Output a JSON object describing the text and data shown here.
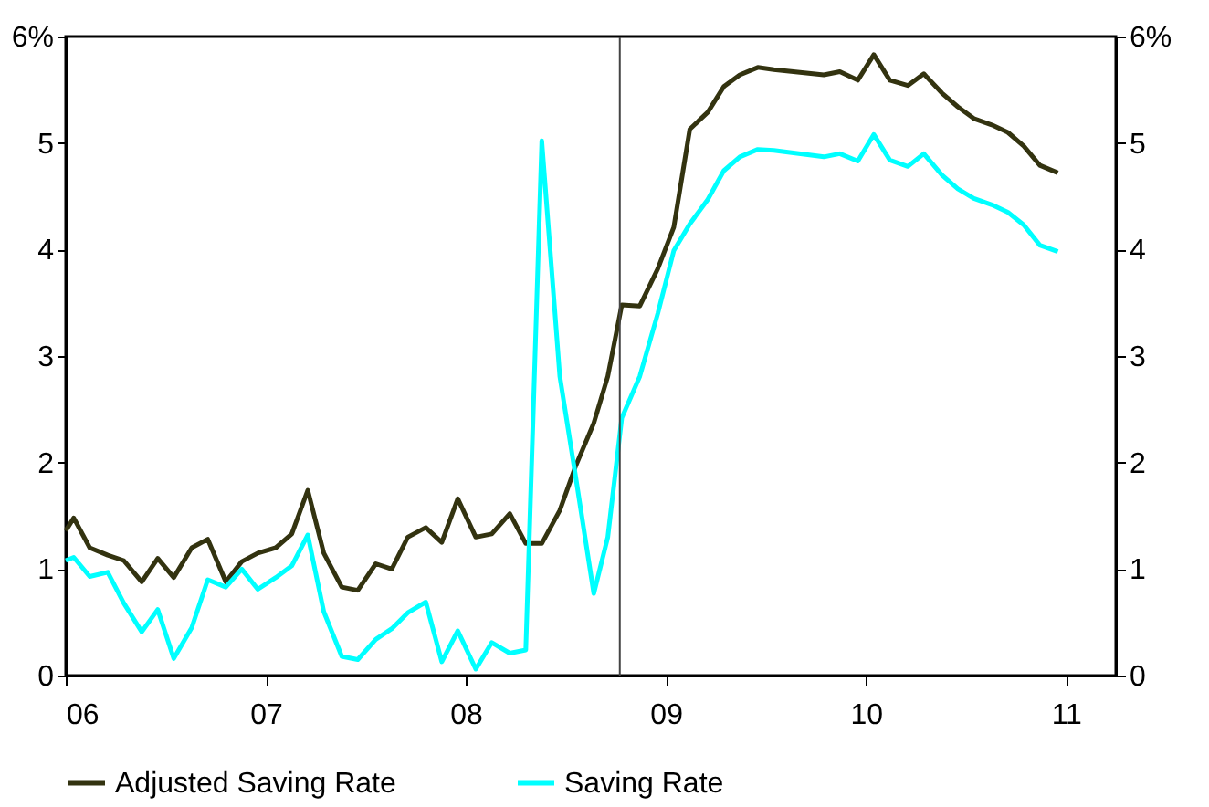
{
  "chart_data": {
    "type": "line",
    "x": [
      2006.0,
      2006.04,
      2006.12,
      2006.21,
      2006.29,
      2006.38,
      2006.46,
      2006.54,
      2006.63,
      2006.71,
      2006.8,
      2006.88,
      2006.96,
      2007.05,
      2007.13,
      2007.21,
      2007.29,
      2007.38,
      2007.46,
      2007.55,
      2007.63,
      2007.71,
      2007.8,
      2007.88,
      2007.96,
      2008.05,
      2008.13,
      2008.22,
      2008.3,
      2008.38,
      2008.47,
      2008.55,
      2008.64,
      2008.71,
      2008.78,
      2008.87,
      2008.96,
      2009.04,
      2009.12,
      2009.21,
      2009.29,
      2009.37,
      2009.46,
      2009.54,
      2009.79,
      2009.87,
      2009.96,
      2010.04,
      2010.12,
      2010.21,
      2010.29,
      2010.38,
      2010.46,
      2010.54,
      2010.63,
      2010.71,
      2010.79,
      2010.87,
      2010.96
    ],
    "series": [
      {
        "name": "Adjusted Saving Rate",
        "color": "#333310",
        "values": [
          1.36,
          1.48,
          1.2,
          1.13,
          1.08,
          0.88,
          1.1,
          0.92,
          1.2,
          1.28,
          0.88,
          1.07,
          1.15,
          1.2,
          1.33,
          1.74,
          1.15,
          0.83,
          0.8,
          1.05,
          1.0,
          1.3,
          1.39,
          1.25,
          1.66,
          1.3,
          1.33,
          1.52,
          1.24,
          1.24,
          1.55,
          1.97,
          2.37,
          2.81,
          3.48,
          3.47,
          3.82,
          4.21,
          5.13,
          5.29,
          5.53,
          5.64,
          5.71,
          5.69,
          5.64,
          5.67,
          5.59,
          5.83,
          5.59,
          5.54,
          5.65,
          5.47,
          5.34,
          5.23,
          5.17,
          5.1,
          4.97,
          4.79,
          4.72
        ]
      },
      {
        "name": "Saving Rate",
        "color": "#00ffff",
        "values": [
          1.08,
          1.11,
          0.93,
          0.97,
          0.68,
          0.41,
          0.62,
          0.16,
          0.45,
          0.9,
          0.83,
          1.0,
          0.81,
          0.92,
          1.03,
          1.32,
          0.6,
          0.18,
          0.15,
          0.34,
          0.44,
          0.59,
          0.69,
          0.13,
          0.42,
          0.06,
          0.31,
          0.21,
          0.24,
          5.02,
          2.81,
          1.86,
          0.77,
          1.3,
          2.42,
          2.81,
          3.4,
          3.99,
          4.24,
          4.47,
          4.74,
          4.87,
          4.94,
          4.93,
          4.87,
          4.9,
          4.83,
          5.08,
          4.84,
          4.78,
          4.9,
          4.7,
          4.57,
          4.48,
          4.42,
          4.35,
          4.23,
          4.04,
          3.98
        ]
      }
    ],
    "xlim": [
      2006,
      2011.25
    ],
    "xticks": [
      {
        "value": 2006,
        "label": "06"
      },
      {
        "value": 2007,
        "label": "07"
      },
      {
        "value": 2008,
        "label": "08"
      },
      {
        "value": 2009,
        "label": "09"
      },
      {
        "value": 2010,
        "label": "10"
      },
      {
        "value": 2011,
        "label": "11"
      }
    ],
    "ylim": [
      0,
      6
    ],
    "yticks": [
      0,
      1,
      2,
      3,
      4,
      5,
      {
        "value": 6,
        "label": "6%"
      }
    ],
    "y2lim": [
      0,
      6
    ],
    "y2ticks": [
      0,
      1,
      2,
      3,
      4,
      5,
      {
        "value": 6,
        "label": "6%"
      }
    ],
    "ref_lines": [
      {
        "axis": "x",
        "value": 2008.77,
        "color": "#444444"
      }
    ],
    "grid": false,
    "legend": "bottom",
    "line_style": "solid"
  }
}
